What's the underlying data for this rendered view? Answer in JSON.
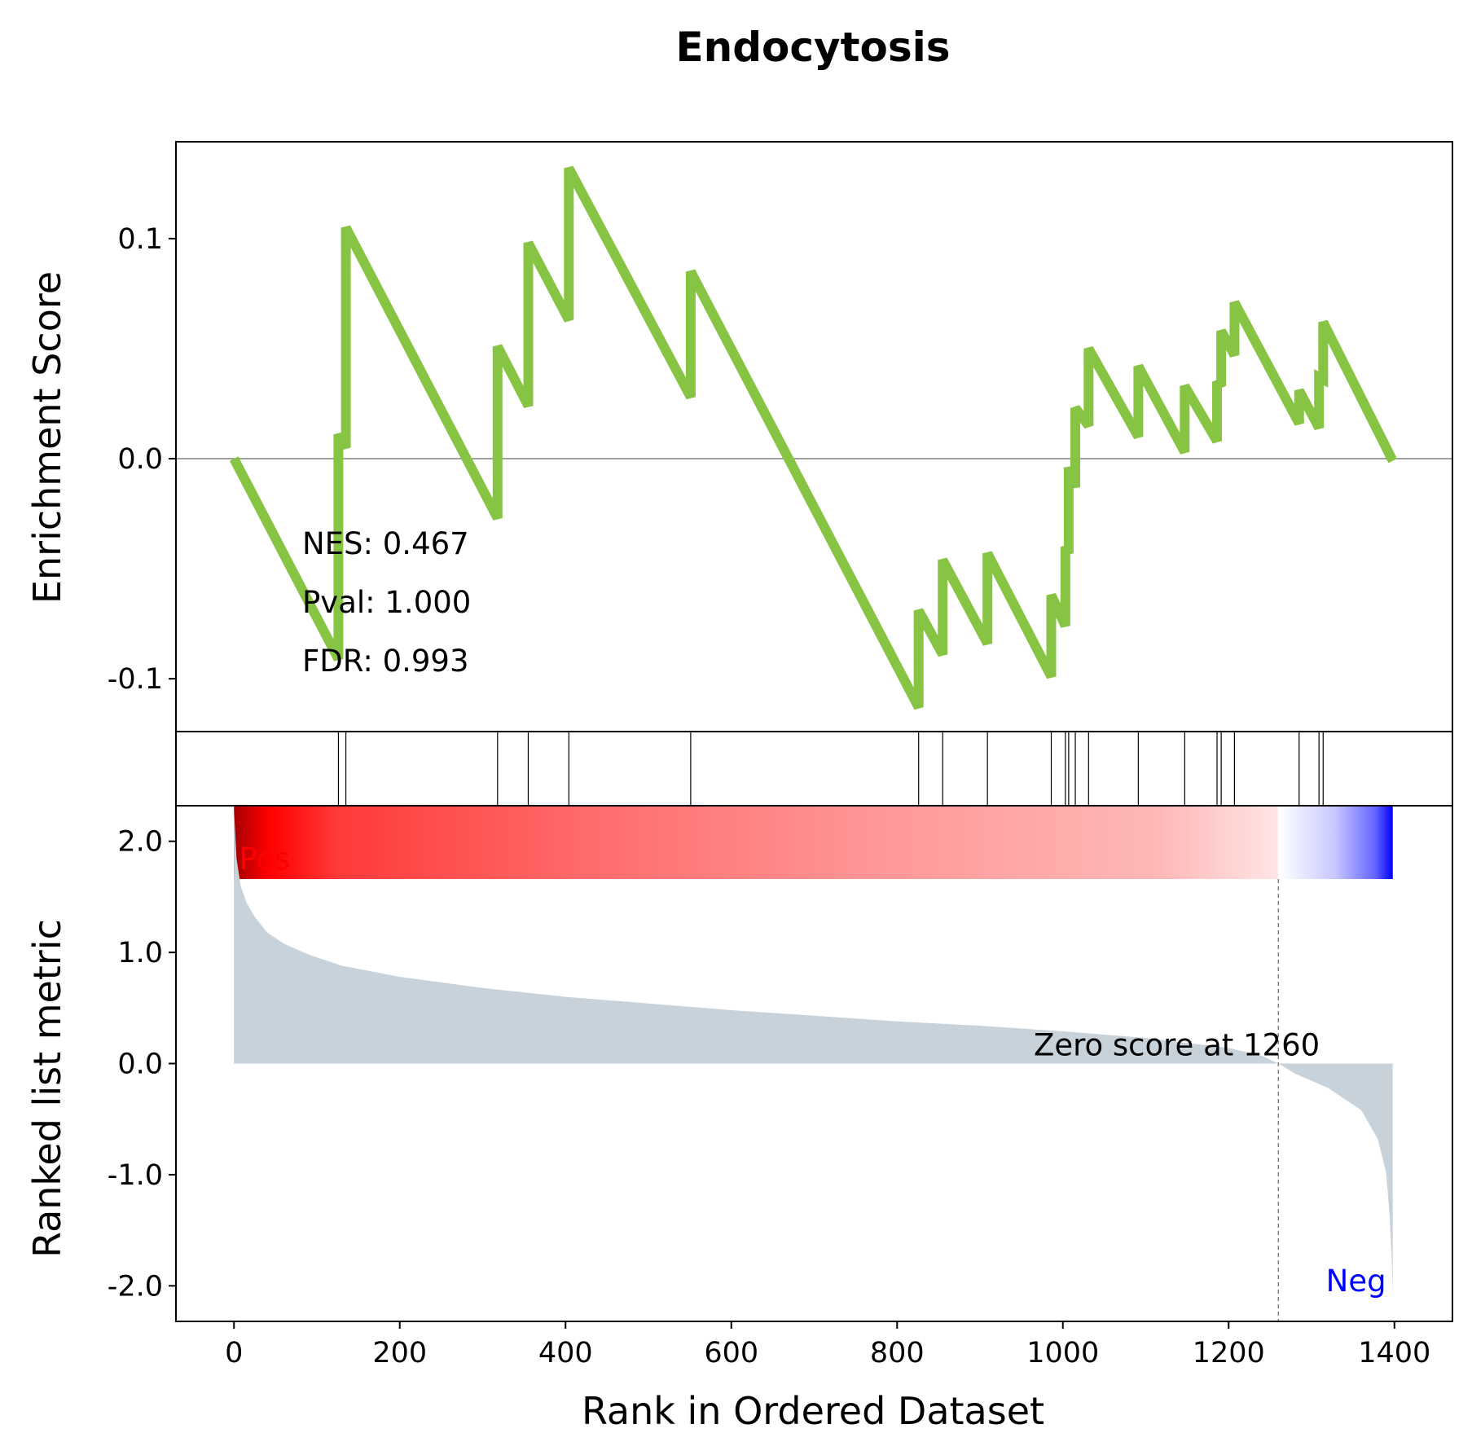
{
  "chart_data": {
    "type": "line",
    "title": "Endocytosis",
    "xlabel": "Rank in Ordered Dataset",
    "xlim": [
      -70,
      1470
    ],
    "x_ticks": [
      0,
      200,
      400,
      600,
      800,
      1000,
      1200,
      1400
    ],
    "colors": {
      "es_line": "#88c444",
      "metric_fill": "#c8d2db",
      "pos": "#ff0000",
      "neg": "#0000ff"
    },
    "es_panel": {
      "ylabel": "Enrichment Score",
      "ylim": [
        -0.124,
        0.144
      ],
      "y_ticks": [
        {
          "value": 0.1,
          "label": "0.1"
        },
        {
          "value": 0.0,
          "label": "0.0"
        },
        {
          "value": -0.1,
          "label": "-0.1"
        }
      ],
      "points": [
        [
          0,
          0.0
        ],
        [
          126,
          -0.091
        ],
        [
          126,
          0.011
        ],
        [
          135,
          0.005
        ],
        [
          135,
          0.105
        ],
        [
          318,
          -0.027
        ],
        [
          318,
          0.051
        ],
        [
          355,
          0.024
        ],
        [
          355,
          0.098
        ],
        [
          404,
          0.063
        ],
        [
          404,
          0.132
        ],
        [
          551,
          0.028
        ],
        [
          551,
          0.085
        ],
        [
          826,
          -0.113
        ],
        [
          826,
          -0.069
        ],
        [
          855,
          -0.089
        ],
        [
          855,
          -0.046
        ],
        [
          909,
          -0.084
        ],
        [
          909,
          -0.043
        ],
        [
          986,
          -0.099
        ],
        [
          986,
          -0.062
        ],
        [
          1003,
          -0.076
        ],
        [
          1003,
          -0.04
        ],
        [
          1007,
          -0.043
        ],
        [
          1007,
          -0.004
        ],
        [
          1015,
          -0.013
        ],
        [
          1015,
          0.023
        ],
        [
          1031,
          0.015
        ],
        [
          1031,
          0.05
        ],
        [
          1091,
          0.01
        ],
        [
          1091,
          0.042
        ],
        [
          1147,
          0.003
        ],
        [
          1147,
          0.033
        ],
        [
          1186,
          0.008
        ],
        [
          1186,
          0.035
        ],
        [
          1191,
          0.033
        ],
        [
          1191,
          0.058
        ],
        [
          1207,
          0.047
        ],
        [
          1207,
          0.071
        ],
        [
          1285,
          0.016
        ],
        [
          1285,
          0.031
        ],
        [
          1309,
          0.014
        ],
        [
          1309,
          0.037
        ],
        [
          1314,
          0.036
        ],
        [
          1314,
          0.062
        ],
        [
          1398,
          -0.001
        ]
      ],
      "annotations": [
        "NES: 0.467",
        "Pval: 1.000",
        "FDR: 0.993"
      ]
    },
    "hits": [
      126,
      135,
      318,
      355,
      404,
      551,
      826,
      855,
      909,
      986,
      1003,
      1007,
      1015,
      1031,
      1091,
      1147,
      1186,
      1191,
      1207,
      1285,
      1309,
      1314
    ],
    "metric_panel": {
      "ylabel": "Ranked list metric",
      "ylim": [
        -2.32,
        2.32
      ],
      "y_ticks": [
        {
          "value": 2.0,
          "label": "2.0"
        },
        {
          "value": 1.0,
          "label": "1.0"
        },
        {
          "value": 0.0,
          "label": "0.0"
        },
        {
          "value": -1.0,
          "label": "-1.0"
        },
        {
          "value": -2.0,
          "label": "-2.0"
        }
      ],
      "profile": [
        [
          0,
          2.3
        ],
        [
          3,
          1.85
        ],
        [
          8,
          1.6
        ],
        [
          15,
          1.45
        ],
        [
          25,
          1.32
        ],
        [
          40,
          1.18
        ],
        [
          60,
          1.08
        ],
        [
          90,
          0.98
        ],
        [
          130,
          0.88
        ],
        [
          200,
          0.78
        ],
        [
          300,
          0.68
        ],
        [
          400,
          0.6
        ],
        [
          500,
          0.54
        ],
        [
          600,
          0.48
        ],
        [
          700,
          0.43
        ],
        [
          800,
          0.38
        ],
        [
          900,
          0.34
        ],
        [
          1000,
          0.29
        ],
        [
          1100,
          0.23
        ],
        [
          1200,
          0.14
        ],
        [
          1240,
          0.07
        ],
        [
          1260,
          0.0
        ],
        [
          1280,
          -0.09
        ],
        [
          1320,
          -0.22
        ],
        [
          1360,
          -0.42
        ],
        [
          1380,
          -0.68
        ],
        [
          1390,
          -0.98
        ],
        [
          1394,
          -1.35
        ],
        [
          1397,
          -1.8
        ],
        [
          1398,
          -2.1
        ]
      ],
      "zero_cross_rank": 1260,
      "zero_label": "Zero score at 1260",
      "pos_label": "Pos",
      "neg_label": "Neg"
    }
  }
}
